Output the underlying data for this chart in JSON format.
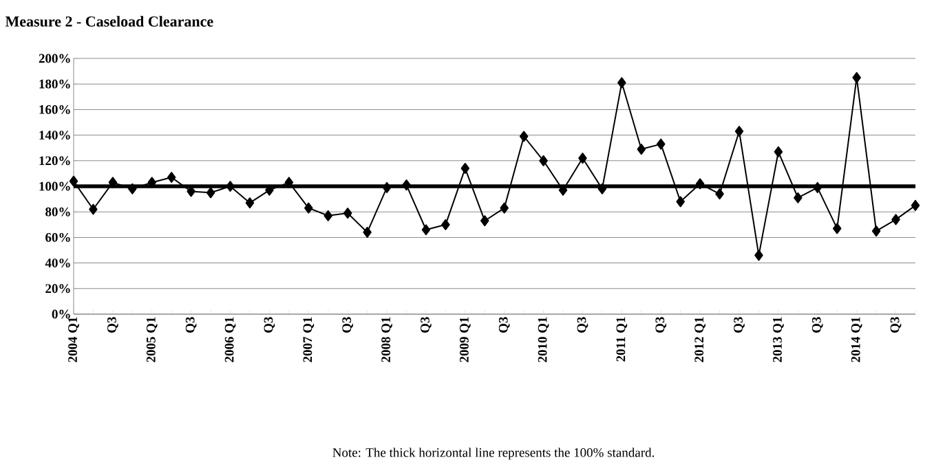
{
  "chart_data": {
    "type": "line",
    "title": "Measure 2 - Caseload Clearance",
    "categories": [
      "2004 Q1",
      null,
      "Q3",
      null,
      "2005 Q1",
      null,
      "Q3",
      null,
      "2006 Q1",
      null,
      "Q3",
      null,
      "2007 Q1",
      null,
      "Q3",
      null,
      "2008 Q1",
      null,
      "Q3",
      null,
      "2009 Q1",
      null,
      "Q3",
      null,
      "2010 Q1",
      null,
      "Q3",
      null,
      "2011 Q1",
      null,
      "Q3",
      null,
      "2012 Q1",
      null,
      "Q3",
      null,
      "2013 Q1",
      null,
      "Q3",
      null,
      "2014 Q1",
      null,
      "Q3",
      null
    ],
    "series": [
      {
        "color": "#000000",
        "values": [
          104,
          82,
          103,
          98,
          103,
          107,
          96,
          95,
          100,
          87,
          97,
          103,
          83,
          77,
          79,
          64,
          99,
          101,
          66,
          70,
          114,
          73,
          83,
          139,
          120,
          97,
          122,
          98,
          181,
          129,
          133,
          88,
          102,
          94,
          143,
          46,
          127,
          91,
          99,
          67,
          185,
          65,
          74,
          85
        ]
      }
    ],
    "ylim": [
      0,
      200
    ],
    "yticks": [
      {
        "value": 0,
        "label": "0%"
      },
      {
        "value": 20,
        "label": "20%"
      },
      {
        "value": 40,
        "label": "40%"
      },
      {
        "value": 60,
        "label": "60%"
      },
      {
        "value": 80,
        "label": "80%"
      },
      {
        "value": 100,
        "label": "100%"
      },
      {
        "value": 120,
        "label": "120%"
      },
      {
        "value": 140,
        "label": "140%"
      },
      {
        "value": 160,
        "label": "160%"
      },
      {
        "value": 180,
        "label": "180%"
      },
      {
        "value": 200,
        "label": "200%"
      }
    ],
    "grid": "y",
    "marker": "diamond",
    "line_style": "solid",
    "ref_lines": [
      {
        "axis": "y",
        "value": 100,
        "color": "#000000"
      }
    ],
    "annotations": [
      "Note: The thick horizontal line represents the 100% standard."
    ]
  }
}
